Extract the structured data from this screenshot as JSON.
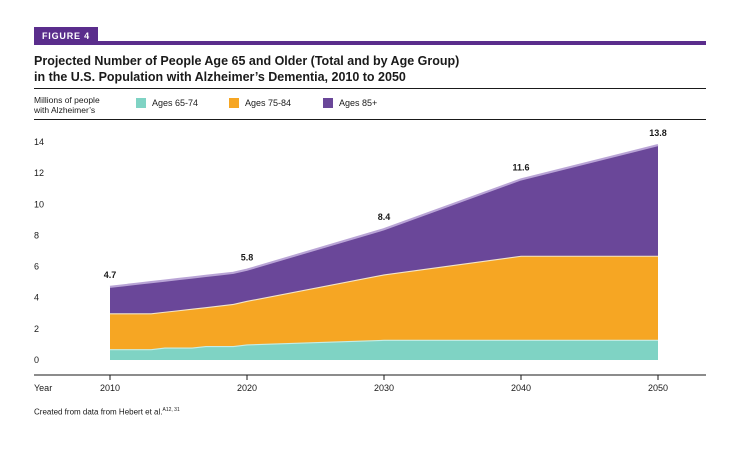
{
  "figure_label": "FIGURE 4",
  "title_line1": "Projected Number of People Age 65 and Older (Total and by Age Group)",
  "title_line2": "in the U.S. Population with Alzheimer’s Dementia, 2010 to 2050",
  "ylabel_line1": "Millions of people",
  "ylabel_line2": "with Alzheimer’s",
  "xlabel": "Year",
  "credit": "Created from data from Hebert et al.",
  "credit_sup": "A12, 31",
  "colors": {
    "accent": "#5a2d8c",
    "a6574": "#7fd3c4",
    "a7584": "#f6a623",
    "a85": "#6a4799",
    "edge": "#f3e6c8"
  },
  "chart_data": {
    "type": "area",
    "stacked": true,
    "x": [
      2010,
      2011,
      2012,
      2013,
      2014,
      2015,
      2016,
      2017,
      2018,
      2019,
      2020,
      2030,
      2040,
      2050
    ],
    "series": [
      {
        "name": "Ages 65-74",
        "values": [
          0.7,
          0.7,
          0.7,
          0.7,
          0.8,
          0.8,
          0.8,
          0.9,
          0.9,
          0.9,
          1.0,
          1.3,
          1.3,
          1.3
        ]
      },
      {
        "name": "Ages 75-84",
        "values": [
          2.3,
          2.3,
          2.3,
          2.3,
          2.3,
          2.4,
          2.5,
          2.5,
          2.6,
          2.7,
          2.8,
          4.2,
          5.4,
          5.4
        ]
      },
      {
        "name": "Ages 85+",
        "values": [
          1.7,
          1.8,
          1.9,
          2.0,
          2.0,
          2.0,
          2.0,
          2.0,
          2.0,
          2.0,
          2.0,
          2.9,
          4.9,
          7.1
        ]
      }
    ],
    "totals": [
      {
        "x": 2010,
        "label": "4.7"
      },
      {
        "x": 2020,
        "label": "5.8"
      },
      {
        "x": 2030,
        "label": "8.4"
      },
      {
        "x": 2040,
        "label": "11.6"
      },
      {
        "x": 2050,
        "label": "13.8"
      }
    ],
    "x_ticks": [
      "2010",
      "2020",
      "2030",
      "2040",
      "2050"
    ],
    "y_ticks": [
      "0",
      "2",
      "4",
      "6",
      "8",
      "10",
      "12",
      "14"
    ],
    "xlim": [
      2010,
      2050
    ],
    "ylim": [
      0,
      14
    ],
    "grid": false,
    "legend": "top"
  }
}
